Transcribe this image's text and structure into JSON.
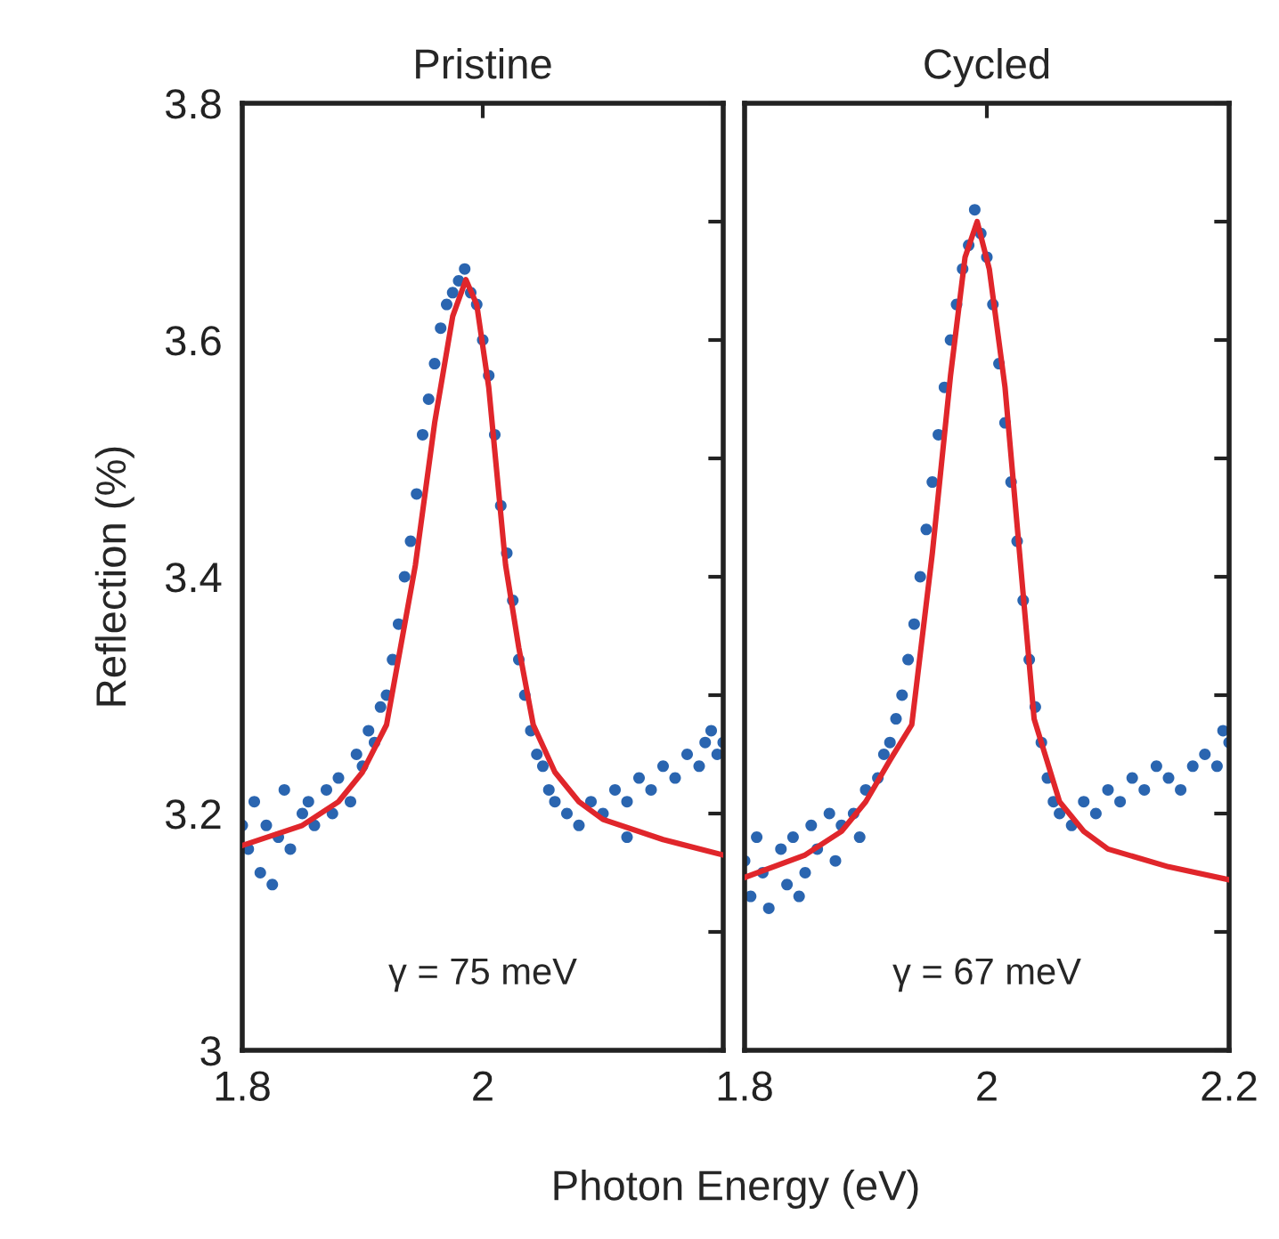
{
  "chart_data": [
    {
      "type": "scatter",
      "title": "Pristine",
      "ylabel": "Reflection (%)",
      "xlabel": "Photon Energy (eV)",
      "xlim": [
        1.8,
        2.2
      ],
      "ylim": [
        3,
        3.8
      ],
      "xticks": [
        1.8,
        2,
        {
          "value": 2.2,
          "label": null
        }
      ],
      "yticks": [
        3,
        {
          "value": 3.1,
          "label": null
        },
        3.2,
        {
          "value": 3.3,
          "label": null
        },
        3.4,
        {
          "value": 3.5,
          "label": null
        },
        3.6,
        {
          "value": 3.7,
          "label": null
        },
        3.8
      ],
      "grid": false,
      "legend": false,
      "annotations": [
        "γ = 75 meV"
      ],
      "series": [
        {
          "marker": "circle",
          "color": "#2a65b0",
          "x": [
            1.8,
            1.805,
            1.81,
            1.815,
            1.82,
            1.825,
            1.83,
            1.835,
            1.84,
            1.85,
            1.855,
            1.86,
            1.87,
            1.875,
            1.88,
            1.89,
            1.895,
            1.9,
            1.905,
            1.91,
            1.915,
            1.92,
            1.925,
            1.93,
            1.935,
            1.94,
            1.945,
            1.95,
            1.955,
            1.96,
            1.965,
            1.97,
            1.975,
            1.98,
            1.985,
            1.99,
            1.995,
            2.0,
            2.005,
            2.01,
            2.015,
            2.02,
            2.025,
            2.03,
            2.035,
            2.04,
            2.045,
            2.05,
            2.055,
            2.06,
            2.07,
            2.08,
            2.09,
            2.1,
            2.11,
            2.12,
            2.12,
            2.13,
            2.14,
            2.15,
            2.16,
            2.17,
            2.18,
            2.185,
            2.19,
            2.195,
            2.2
          ],
          "values": [
            3.19,
            3.17,
            3.21,
            3.15,
            3.19,
            3.14,
            3.18,
            3.22,
            3.17,
            3.2,
            3.21,
            3.19,
            3.22,
            3.2,
            3.23,
            3.21,
            3.25,
            3.24,
            3.27,
            3.26,
            3.29,
            3.3,
            3.33,
            3.36,
            3.4,
            3.43,
            3.47,
            3.52,
            3.55,
            3.58,
            3.61,
            3.63,
            3.64,
            3.65,
            3.66,
            3.64,
            3.63,
            3.6,
            3.57,
            3.52,
            3.46,
            3.42,
            3.38,
            3.33,
            3.3,
            3.27,
            3.25,
            3.24,
            3.22,
            3.21,
            3.2,
            3.19,
            3.21,
            3.2,
            3.22,
            3.21,
            3.18,
            3.23,
            3.22,
            3.24,
            3.23,
            3.25,
            3.24,
            3.26,
            3.27,
            3.25,
            3.26
          ]
        },
        {
          "type": "line",
          "color": "#e0262b",
          "line_style": "solid",
          "marker": "none",
          "x": [
            1.8,
            1.85,
            1.88,
            1.9,
            1.92,
            1.944,
            1.96,
            1.975,
            1.986,
            1.995,
            2.005,
            2.019,
            2.03,
            2.042,
            2.06,
            2.08,
            2.1,
            2.15,
            2.2
          ],
          "values": [
            3.173,
            3.19,
            3.21,
            3.235,
            3.275,
            3.41,
            3.53,
            3.62,
            3.651,
            3.63,
            3.56,
            3.41,
            3.34,
            3.275,
            3.235,
            3.21,
            3.195,
            3.178,
            3.165
          ]
        }
      ]
    },
    {
      "type": "scatter",
      "title": "Cycled",
      "xlim": [
        1.8,
        2.2
      ],
      "ylim": [
        3,
        3.8
      ],
      "xticks": [
        1.8,
        2,
        2.2
      ],
      "yticks": [
        3,
        {
          "value": 3.1,
          "label": null
        },
        3.2,
        {
          "value": 3.3,
          "label": null
        },
        3.4,
        {
          "value": 3.5,
          "label": null
        },
        3.6,
        {
          "value": 3.7,
          "label": null
        },
        3.8
      ],
      "tick_labels": "x",
      "grid": false,
      "legend": false,
      "annotations": [
        "γ = 67 meV"
      ],
      "series": [
        {
          "marker": "circle",
          "color": "#2a65b0",
          "x": [
            1.8,
            1.805,
            1.81,
            1.815,
            1.82,
            1.83,
            1.835,
            1.84,
            1.845,
            1.85,
            1.855,
            1.86,
            1.87,
            1.875,
            1.88,
            1.89,
            1.895,
            1.9,
            1.91,
            1.915,
            1.92,
            1.925,
            1.93,
            1.935,
            1.94,
            1.945,
            1.95,
            1.955,
            1.96,
            1.965,
            1.97,
            1.975,
            1.98,
            1.985,
            1.99,
            1.995,
            2.0,
            2.005,
            2.01,
            2.015,
            2.02,
            2.025,
            2.03,
            2.035,
            2.04,
            2.045,
            2.05,
            2.055,
            2.06,
            2.07,
            2.08,
            2.09,
            2.1,
            2.11,
            2.12,
            2.13,
            2.14,
            2.15,
            2.16,
            2.17,
            2.18,
            2.19,
            2.195,
            2.2
          ],
          "values": [
            3.16,
            3.13,
            3.18,
            3.15,
            3.12,
            3.17,
            3.14,
            3.18,
            3.13,
            3.15,
            3.19,
            3.17,
            3.2,
            3.16,
            3.19,
            3.2,
            3.18,
            3.22,
            3.23,
            3.25,
            3.26,
            3.28,
            3.3,
            3.33,
            3.36,
            3.4,
            3.44,
            3.48,
            3.52,
            3.56,
            3.6,
            3.63,
            3.66,
            3.68,
            3.71,
            3.69,
            3.67,
            3.63,
            3.58,
            3.53,
            3.48,
            3.43,
            3.38,
            3.33,
            3.29,
            3.26,
            3.23,
            3.21,
            3.2,
            3.19,
            3.21,
            3.2,
            3.22,
            3.21,
            3.23,
            3.22,
            3.24,
            3.23,
            3.22,
            3.24,
            3.25,
            3.24,
            3.27,
            3.26
          ]
        },
        {
          "type": "line",
          "color": "#e0262b",
          "line_style": "solid",
          "marker": "none",
          "x": [
            1.8,
            1.85,
            1.88,
            1.9,
            1.92,
            1.938,
            1.955,
            1.97,
            1.982,
            1.992,
            2.002,
            2.015,
            2.027,
            2.039,
            2.06,
            2.08,
            2.1,
            2.15,
            2.2
          ],
          "values": [
            3.146,
            3.165,
            3.185,
            3.21,
            3.245,
            3.275,
            3.42,
            3.57,
            3.67,
            3.7,
            3.66,
            3.56,
            3.42,
            3.28,
            3.21,
            3.185,
            3.17,
            3.155,
            3.144
          ]
        }
      ]
    }
  ]
}
